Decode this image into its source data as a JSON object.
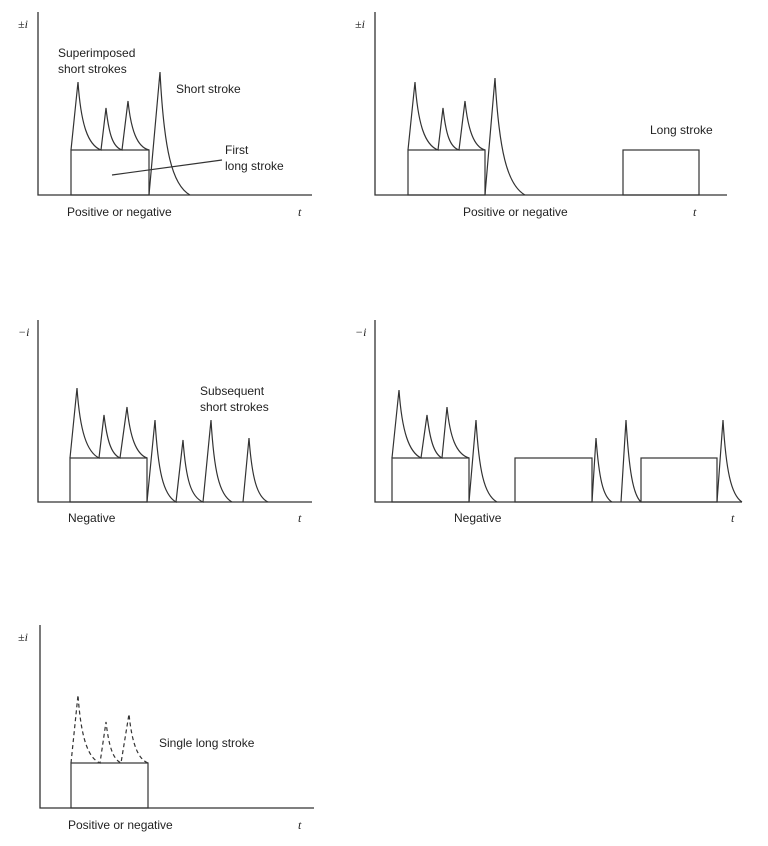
{
  "panels": [
    {
      "y_label": "±i",
      "x_label": "t",
      "polarity": "Positive or negative",
      "annotations": [
        "Superimposed",
        "short strokes",
        "Short stroke",
        "First",
        "long stroke"
      ]
    },
    {
      "y_label": "±i",
      "x_label": "t",
      "polarity": "Positive or negative",
      "annotations": [
        "Long stroke"
      ]
    },
    {
      "y_label": "−i",
      "x_label": "t",
      "polarity": "Negative",
      "annotations": [
        "Subsequent",
        "short strokes"
      ]
    },
    {
      "y_label": "−i",
      "x_label": "t",
      "polarity": "Negative",
      "annotations": []
    },
    {
      "y_label": "±i",
      "x_label": "t",
      "polarity": "Positive or negative",
      "annotations": [
        "Single long stroke"
      ]
    }
  ]
}
